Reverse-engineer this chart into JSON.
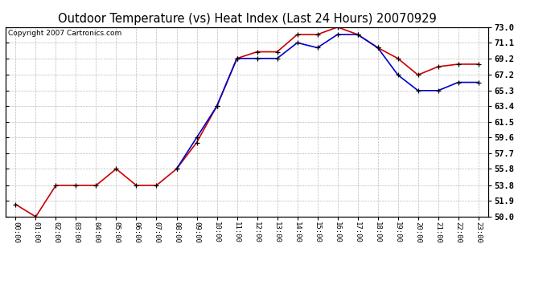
{
  "title": "Outdoor Temperature (vs) Heat Index (Last 24 Hours) 20070929",
  "copyright": "Copyright 2007 Cartronics.com",
  "hours": [
    "00:00",
    "01:00",
    "02:00",
    "03:00",
    "04:00",
    "05:00",
    "06:00",
    "07:00",
    "08:00",
    "09:00",
    "10:00",
    "11:00",
    "12:00",
    "13:00",
    "14:00",
    "15:00",
    "16:00",
    "17:00",
    "18:00",
    "19:00",
    "20:00",
    "21:00",
    "22:00",
    "23:00"
  ],
  "red_temp": [
    51.5,
    50.0,
    53.8,
    53.8,
    53.8,
    55.8,
    53.8,
    53.8,
    55.8,
    59.0,
    63.4,
    69.2,
    70.0,
    70.0,
    72.1,
    72.1,
    73.0,
    72.1,
    70.5,
    69.2,
    67.2,
    68.2,
    68.5,
    68.5
  ],
  "blue_heat": [
    null,
    null,
    null,
    null,
    null,
    null,
    null,
    null,
    55.8,
    59.6,
    63.4,
    69.2,
    69.2,
    69.2,
    71.1,
    70.5,
    72.1,
    72.1,
    70.5,
    67.2,
    65.3,
    65.3,
    66.3,
    66.3
  ],
  "ylim": [
    50.0,
    73.0
  ],
  "yticks": [
    50.0,
    51.9,
    53.8,
    55.8,
    57.7,
    59.6,
    61.5,
    63.4,
    65.3,
    67.2,
    69.2,
    71.1,
    73.0
  ],
  "red_color": "#cc0000",
  "blue_color": "#0000cc",
  "bg_color": "#ffffff",
  "grid_color": "#aaaaaa",
  "title_fontsize": 10.5,
  "copyright_fontsize": 6.5
}
